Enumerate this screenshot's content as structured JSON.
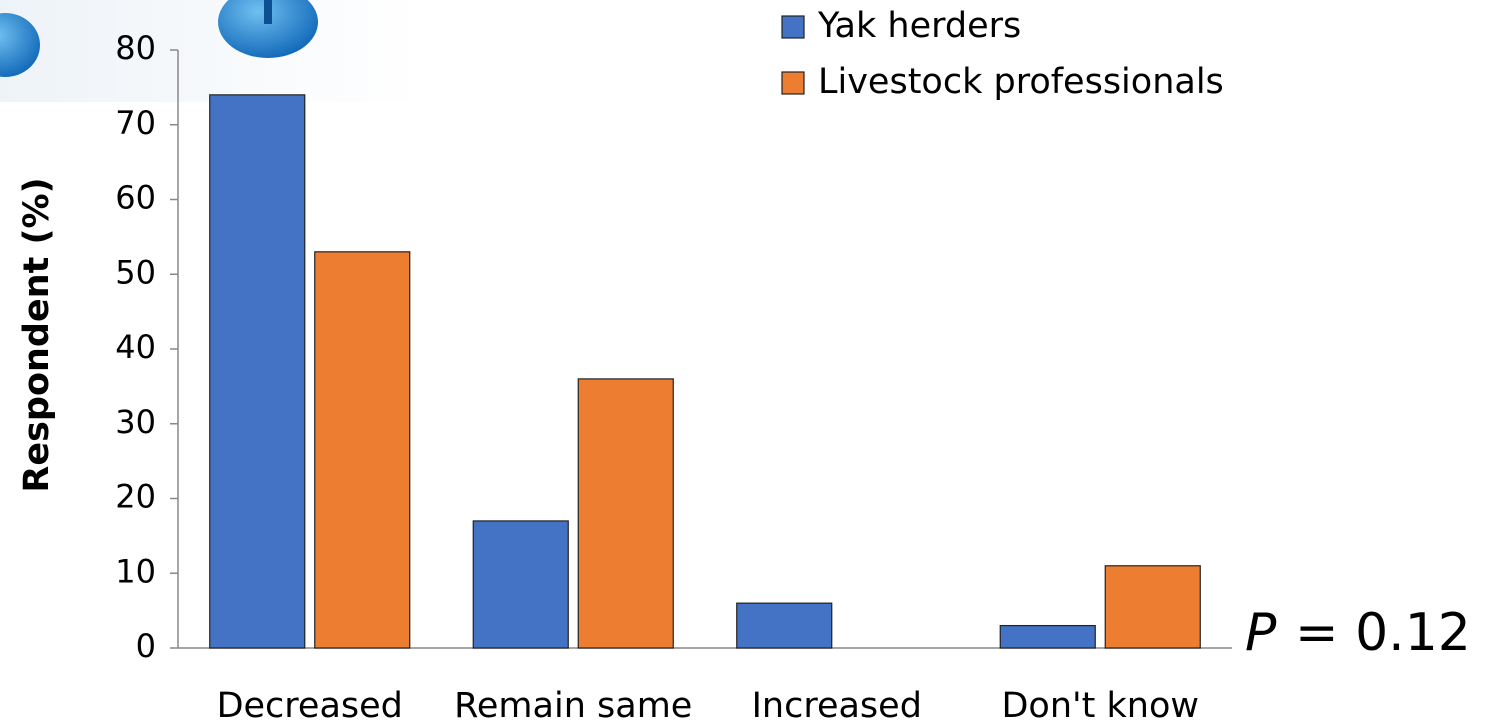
{
  "chart_data": {
    "type": "bar",
    "y_label": "Respondent (%)",
    "categories": [
      "Decreased",
      "Remain same",
      "Increased",
      "Don't know"
    ],
    "series": [
      {
        "name": "Yak herders",
        "color": "#4472c4",
        "values": [
          74,
          17,
          6,
          3
        ]
      },
      {
        "name": "Livestock professionals",
        "color": "#ed7d31",
        "values": [
          53,
          36,
          0,
          11
        ]
      }
    ],
    "ylim": [
      0,
      80
    ],
    "yticks": [
      0,
      10,
      20,
      30,
      40,
      50,
      60,
      70,
      80
    ],
    "annotation": {
      "italic": "P",
      "text": "= 0.12"
    }
  }
}
